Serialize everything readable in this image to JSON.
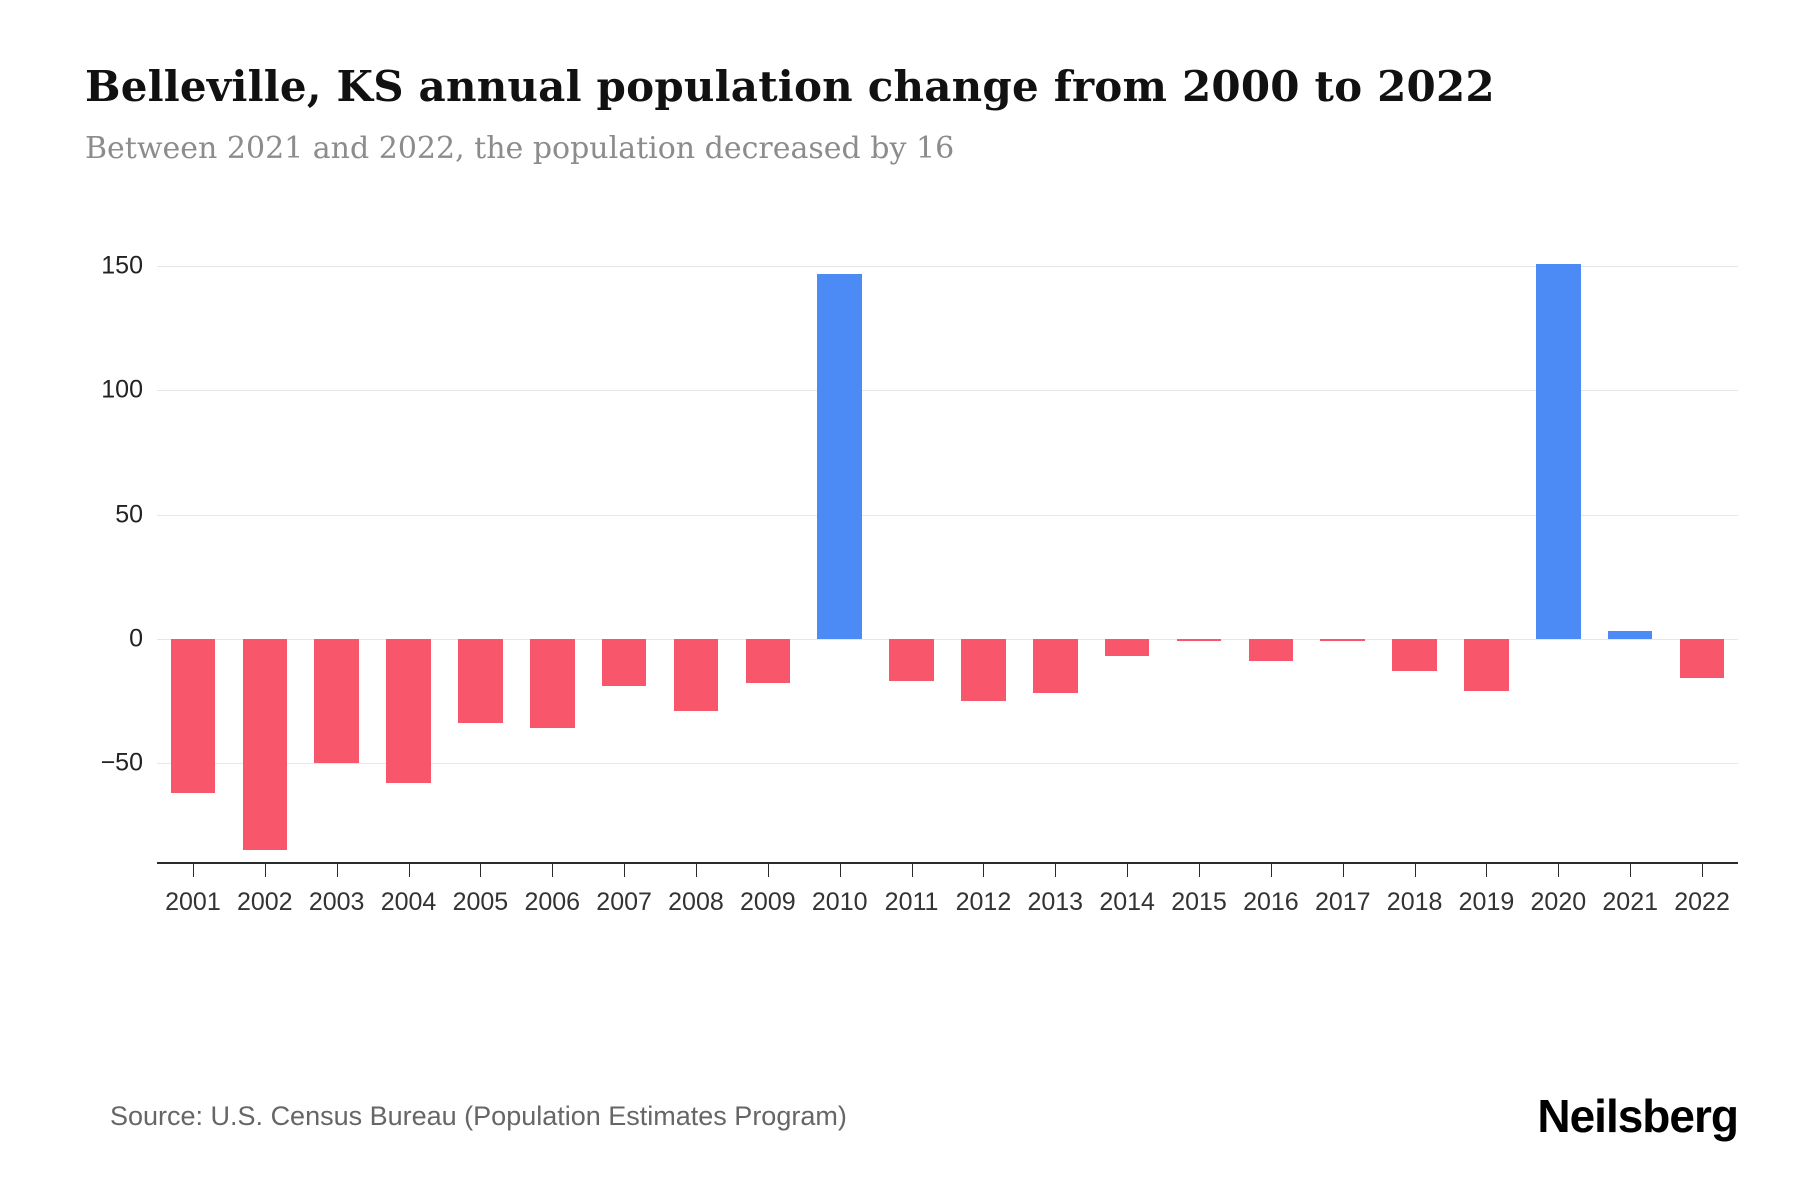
{
  "header": {
    "title": "Belleville, KS annual population change from 2000 to 2022",
    "subtitle": "Between 2021 and 2022, the population decreased by 16"
  },
  "footer": {
    "source": "Source: U.S. Census Bureau (Population Estimates Program)",
    "logo": "Neilsberg"
  },
  "colors": {
    "negative_bar": "#F8566B",
    "positive_bar": "#4C8BF5",
    "gridline": "#e7e7e7",
    "axis_line": "#2b2b2b"
  },
  "chart_data": {
    "type": "bar",
    "title": "Belleville, KS annual population change from 2000 to 2022",
    "subtitle": "Between 2021 and 2022, the population decreased by 16",
    "categories": [
      "2001",
      "2002",
      "2003",
      "2004",
      "2005",
      "2006",
      "2007",
      "2008",
      "2009",
      "2010",
      "2011",
      "2012",
      "2013",
      "2014",
      "2015",
      "2016",
      "2017",
      "2018",
      "2019",
      "2020",
      "2021",
      "2022"
    ],
    "values": [
      -62,
      -85,
      -50,
      -58,
      -34,
      -36,
      -19,
      -29,
      -18,
      147,
      -17,
      -25,
      -22,
      -7,
      -1,
      -9,
      -1,
      -13,
      -21,
      151,
      3,
      -16
    ],
    "xlabel": "",
    "ylabel": "",
    "ylim": [
      -90,
      155
    ],
    "yticks": [
      -50,
      0,
      50,
      100,
      150
    ],
    "grid": true,
    "legend_position": "none",
    "bar_color_rule": "blue if positive, pink if negative"
  }
}
